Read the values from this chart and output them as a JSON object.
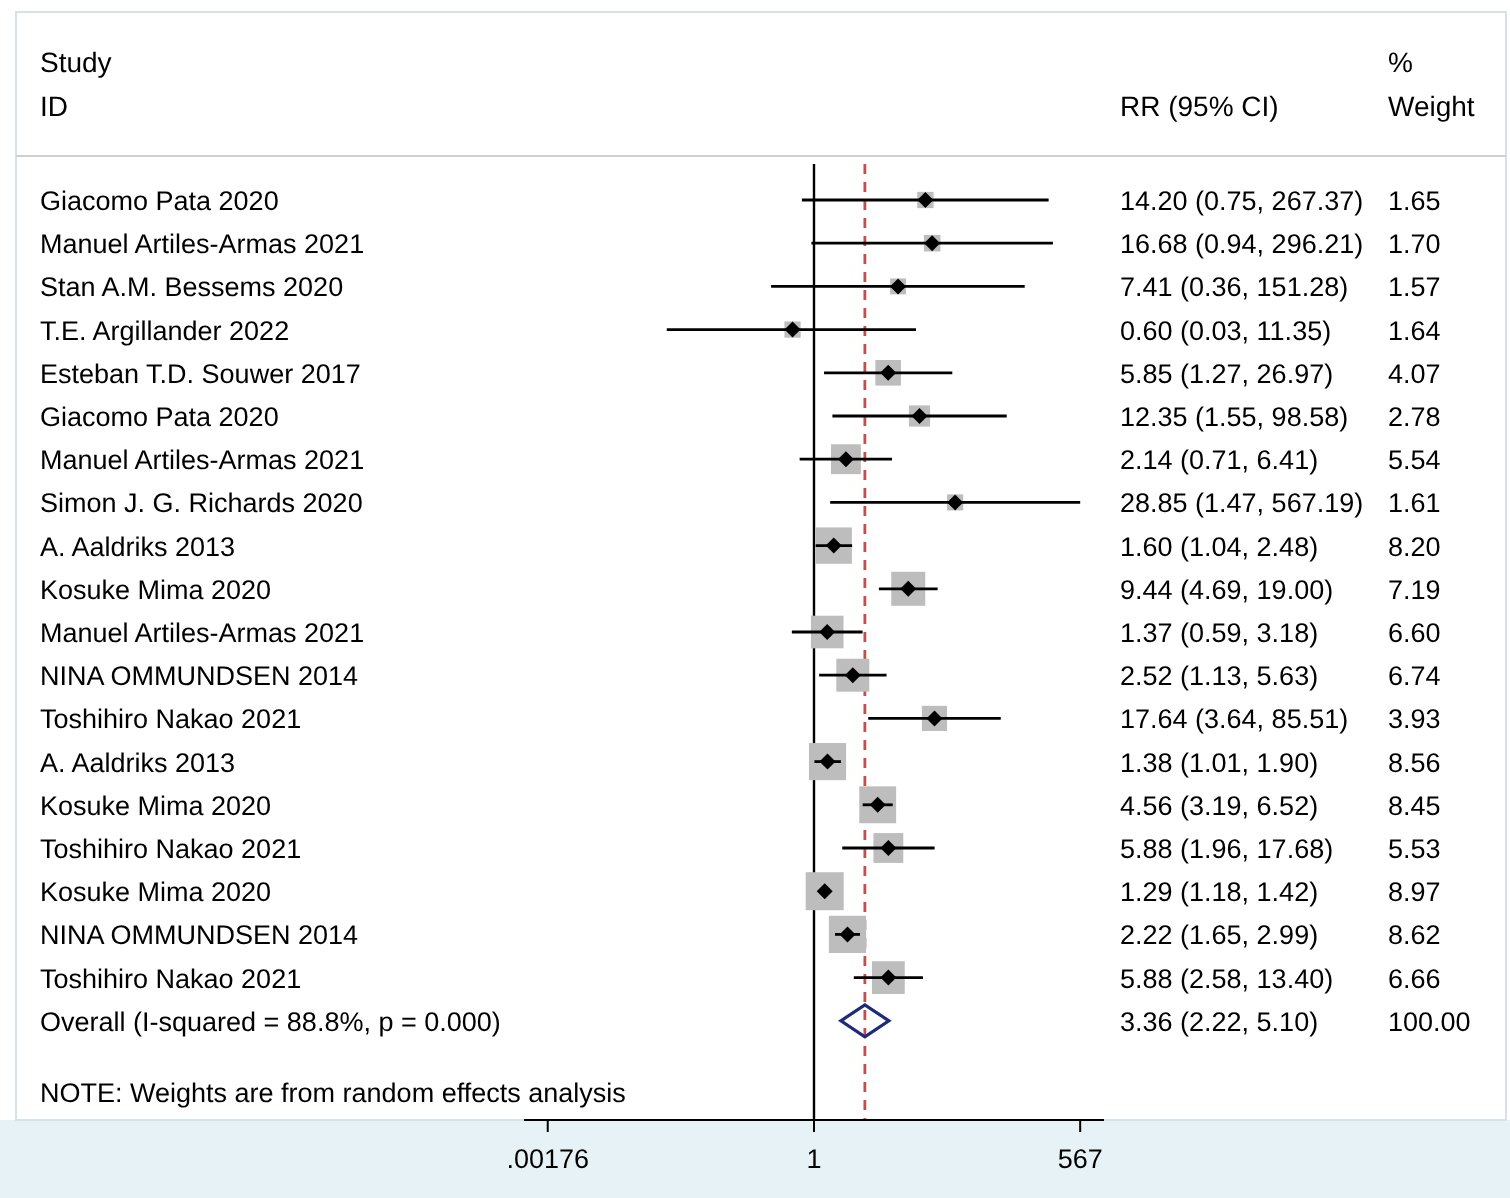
{
  "chart_data": {
    "type": "scatter",
    "orientation": "horizontal",
    "log": "x",
    "xlim": [
      0.001,
      1000
    ],
    "xticks": [
      {
        "value": 0.00176,
        "label": ".00176"
      },
      1,
      567
    ],
    "categories": [
      "Giacomo Pata 2020",
      "Manuel Artiles-Armas 2021",
      "Stan A.M. Bessems 2020",
      "T.E. Argillander 2022",
      "Esteban T.D. Souwer 2017",
      "Giacomo Pata 2020",
      "Manuel Artiles-Armas 2021",
      "Simon J. G. Richards 2020",
      "A. Aaldriks 2013",
      "Kosuke Mima 2020",
      "Manuel Artiles-Armas 2021",
      "NINA OMMUNDSEN 2014",
      "Toshihiro Nakao 2021",
      "A. Aaldriks 2013",
      "Kosuke Mima 2020",
      "Toshihiro Nakao 2021",
      "Kosuke Mima 2020",
      "NINA OMMUNDSEN 2014",
      "Toshihiro Nakao 2021",
      "Overall  (I-squared = 88.8%, p = 0.000)"
    ],
    "series": [
      {
        "color": "#000000",
        "marker": "diamond",
        "values": [
          14.2,
          16.68,
          7.41,
          0.6,
          5.85,
          12.35,
          2.14,
          28.85,
          1.6,
          9.44,
          1.37,
          2.52,
          17.64,
          1.38,
          4.56,
          5.88,
          1.29,
          2.22,
          5.88,
          null
        ],
        "errors": [
          [
            0.75,
            267.37
          ],
          [
            0.94,
            296.21
          ],
          [
            0.36,
            151.28
          ],
          [
            0.03,
            11.35
          ],
          [
            1.27,
            26.97
          ],
          [
            1.55,
            98.58
          ],
          [
            0.71,
            6.41
          ],
          [
            1.47,
            567.19
          ],
          [
            1.04,
            2.48
          ],
          [
            4.69,
            19.0
          ],
          [
            0.59,
            3.18
          ],
          [
            1.13,
            5.63
          ],
          [
            3.64,
            85.51
          ],
          [
            1.01,
            1.9
          ],
          [
            3.19,
            6.52
          ],
          [
            1.96,
            17.68
          ],
          [
            1.18,
            1.42
          ],
          [
            1.65,
            2.99
          ],
          [
            2.58,
            13.4
          ],
          null
        ]
      },
      {
        "color": "#1f2a7a",
        "marker": "diamond",
        "values": [
          null,
          null,
          null,
          null,
          null,
          null,
          null,
          null,
          null,
          null,
          null,
          null,
          null,
          null,
          null,
          null,
          null,
          null,
          null,
          3.36
        ]
      }
    ],
    "ref_lines": [
      {
        "axis": "x",
        "value": 1,
        "color": "#000000",
        "line_style": "solid"
      },
      {
        "axis": "x",
        "value": 3.36,
        "color": "#c0504d",
        "line_style": "dashed"
      }
    ],
    "annotations": [
      "Study ID",
      "RR (95% CI)",
      "% Weight",
      "NOTE: Weights are from random effects analysis",
      "14.20 (0.75, 267.37)",
      "16.68 (0.94, 296.21)",
      "7.41 (0.36, 151.28)",
      "0.60 (0.03, 11.35)",
      "5.85 (1.27, 26.97)",
      "12.35 (1.55, 98.58)",
      "2.14 (0.71, 6.41)",
      "28.85 (1.47, 567.19)",
      "1.60 (1.04, 2.48)",
      "9.44 (4.69, 19.00)",
      "1.37 (0.59, 3.18)",
      "2.52 (1.13, 5.63)",
      "17.64 (3.64, 85.51)",
      "1.38 (1.01, 1.90)",
      "4.56 (3.19, 6.52)",
      "5.88 (1.96, 17.68)",
      "1.29 (1.18, 1.42)",
      "2.22 (1.65, 2.99)",
      "5.88 (2.58, 13.40)",
      "3.36 (2.22, 5.10)",
      "1.65",
      "1.70",
      "1.57",
      "1.64",
      "4.07",
      "2.78",
      "5.54",
      "1.61",
      "8.20",
      "7.19",
      "6.60",
      "6.74",
      "3.93",
      "8.56",
      "8.45",
      "5.53",
      "8.97",
      "8.62",
      "6.66",
      "100.00"
    ]
  }
}
